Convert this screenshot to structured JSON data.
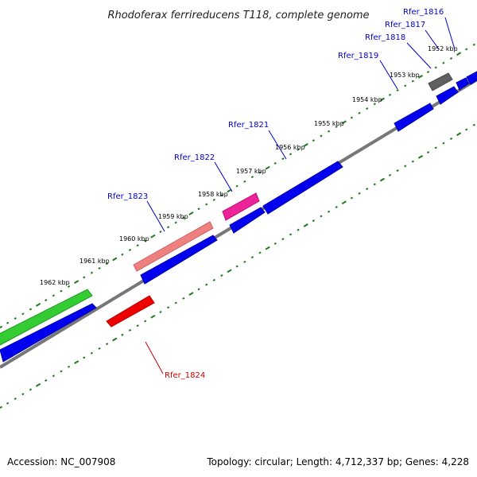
{
  "title": "Rhodoferax ferrireducens T118, complete genome",
  "footer": {
    "accession": "Accession: NC_007908",
    "summary": "Topology: circular; Length: 4,712,337 bp; Genes: 4,228"
  },
  "scale_labels": [
    "1952 kbp",
    "1953 kbp",
    "1954 kbp",
    "1955 kbp",
    "1956 kbp",
    "1957 kbp",
    "1958 kbp",
    "1959 kbp",
    "1960 kbp",
    "1961 kbp",
    "1962 kbp"
  ],
  "gene_labels": [
    {
      "text": "Rfer_1816",
      "color": "#0000cc"
    },
    {
      "text": "Rfer_1817",
      "color": "#0000cc"
    },
    {
      "text": "Rfer_1818",
      "color": "#0000cc"
    },
    {
      "text": "Rfer_1819",
      "color": "#0000cc"
    },
    {
      "text": "Rfer_1821",
      "color": "#0000cc"
    },
    {
      "text": "Rfer_1822",
      "color": "#0000cc"
    },
    {
      "text": "Rfer_1823",
      "color": "#0000cc"
    },
    {
      "text": "Rfer_1824",
      "color": "#cc0000"
    }
  ],
  "colors": {
    "backbone": "#7a7a7a",
    "ruler": "#1e7a1e",
    "blue_gene": "#0000ee",
    "green_gene": "#33cc33",
    "salmon_gene": "#ee8080",
    "pink_gene": "#ee2299",
    "red_gene": "#ee0000",
    "gray_gene": "#606060"
  }
}
